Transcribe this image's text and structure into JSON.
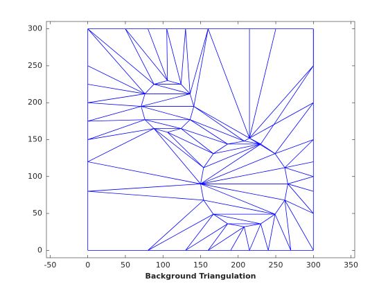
{
  "chart_data": {
    "type": "triangulation",
    "title": "Background Triangulation",
    "color": "#0000ff",
    "xlim": [
      -55,
      355
    ],
    "ylim": [
      -10,
      310
    ],
    "xticks": [
      -50,
      0,
      50,
      100,
      150,
      200,
      250,
      300,
      350
    ],
    "yticks": [
      0,
      50,
      100,
      150,
      200,
      250,
      300
    ],
    "vertices": [
      [
        0,
        0
      ],
      [
        300,
        0
      ],
      [
        300,
        300
      ],
      [
        0,
        300
      ],
      [
        141,
        195
      ],
      [
        136,
        212
      ],
      [
        124,
        225
      ],
      [
        106,
        230
      ],
      [
        88,
        225
      ],
      [
        76,
        212
      ],
      [
        71,
        195
      ],
      [
        76,
        177
      ],
      [
        88,
        165
      ],
      [
        106,
        160
      ],
      [
        124,
        165
      ],
      [
        136,
        177
      ],
      [
        266,
        90
      ],
      [
        262,
        112
      ],
      [
        249,
        131
      ],
      [
        230,
        144
      ],
      [
        208,
        148
      ],
      [
        186,
        144
      ],
      [
        167,
        131
      ],
      [
        154,
        112
      ],
      [
        150,
        90
      ],
      [
        154,
        68
      ],
      [
        167,
        49
      ],
      [
        186,
        36
      ],
      [
        208,
        32
      ],
      [
        230,
        36
      ],
      [
        249,
        49
      ],
      [
        262,
        68
      ],
      [
        0,
        80
      ],
      [
        0,
        120
      ],
      [
        0,
        150
      ],
      [
        0,
        175
      ],
      [
        0,
        200
      ],
      [
        0,
        225
      ],
      [
        0,
        250
      ],
      [
        50,
        300
      ],
      [
        80,
        300
      ],
      [
        105,
        300
      ],
      [
        130,
        300
      ],
      [
        160,
        300
      ],
      [
        215,
        300
      ],
      [
        250,
        300
      ],
      [
        300,
        250
      ],
      [
        300,
        200
      ],
      [
        300,
        150
      ],
      [
        300,
        120
      ],
      [
        300,
        100
      ],
      [
        300,
        80
      ],
      [
        300,
        50
      ],
      [
        80,
        0
      ],
      [
        130,
        0
      ],
      [
        160,
        0
      ],
      [
        190,
        0
      ],
      [
        215,
        0
      ],
      [
        240,
        0
      ],
      [
        270,
        0
      ],
      [
        215,
        152
      ]
    ],
    "edges": [
      [
        0,
        53
      ],
      [
        53,
        54
      ],
      [
        54,
        55
      ],
      [
        55,
        56
      ],
      [
        56,
        57
      ],
      [
        57,
        58
      ],
      [
        58,
        59
      ],
      [
        59,
        1
      ],
      [
        1,
        52
      ],
      [
        52,
        51
      ],
      [
        51,
        50
      ],
      [
        50,
        49
      ],
      [
        49,
        48
      ],
      [
        48,
        47
      ],
      [
        47,
        46
      ],
      [
        46,
        2
      ],
      [
        2,
        45
      ],
      [
        45,
        44
      ],
      [
        44,
        43
      ],
      [
        43,
        42
      ],
      [
        42,
        41
      ],
      [
        41,
        40
      ],
      [
        40,
        39
      ],
      [
        39,
        3
      ],
      [
        3,
        38
      ],
      [
        38,
        37
      ],
      [
        37,
        36
      ],
      [
        36,
        35
      ],
      [
        35,
        34
      ],
      [
        34,
        33
      ],
      [
        33,
        32
      ],
      [
        32,
        0
      ],
      [
        4,
        5
      ],
      [
        5,
        6
      ],
      [
        6,
        7
      ],
      [
        7,
        8
      ],
      [
        8,
        9
      ],
      [
        9,
        10
      ],
      [
        10,
        11
      ],
      [
        11,
        12
      ],
      [
        12,
        13
      ],
      [
        13,
        14
      ],
      [
        14,
        15
      ],
      [
        15,
        4
      ],
      [
        16,
        17
      ],
      [
        17,
        18
      ],
      [
        18,
        19
      ],
      [
        19,
        20
      ],
      [
        20,
        21
      ],
      [
        21,
        22
      ],
      [
        22,
        23
      ],
      [
        23,
        24
      ],
      [
        24,
        25
      ],
      [
        25,
        26
      ],
      [
        26,
        27
      ],
      [
        27,
        28
      ],
      [
        28,
        29
      ],
      [
        29,
        30
      ],
      [
        30,
        31
      ],
      [
        31,
        16
      ],
      [
        10,
        4
      ],
      [
        10,
        5
      ],
      [
        10,
        15
      ],
      [
        9,
        5
      ],
      [
        8,
        5
      ],
      [
        8,
        6
      ],
      [
        11,
        15
      ],
      [
        11,
        14
      ],
      [
        12,
        14
      ],
      [
        24,
        16
      ],
      [
        24,
        17
      ],
      [
        24,
        18
      ],
      [
        24,
        31
      ],
      [
        24,
        30
      ],
      [
        25,
        30
      ],
      [
        26,
        30
      ],
      [
        26,
        29
      ],
      [
        27,
        29
      ],
      [
        24,
        19
      ],
      [
        23,
        19
      ],
      [
        22,
        19
      ],
      [
        21,
        19
      ],
      [
        3,
        8
      ],
      [
        3,
        9
      ],
      [
        38,
        9
      ],
      [
        37,
        9
      ],
      [
        36,
        9
      ],
      [
        36,
        10
      ],
      [
        35,
        10
      ],
      [
        35,
        11
      ],
      [
        34,
        11
      ],
      [
        34,
        12
      ],
      [
        33,
        12
      ],
      [
        39,
        8
      ],
      [
        39,
        7
      ],
      [
        40,
        7
      ],
      [
        41,
        7
      ],
      [
        41,
        6
      ],
      [
        42,
        6
      ],
      [
        42,
        5
      ],
      [
        43,
        5
      ],
      [
        43,
        4
      ],
      [
        13,
        22
      ],
      [
        14,
        22
      ],
      [
        14,
        21
      ],
      [
        15,
        21
      ],
      [
        15,
        20
      ],
      [
        4,
        20
      ],
      [
        4,
        60
      ],
      [
        43,
        60
      ],
      [
        44,
        60
      ],
      [
        60,
        20
      ],
      [
        60,
        19
      ],
      [
        45,
        60
      ],
      [
        46,
        60
      ],
      [
        47,
        60
      ],
      [
        60,
        18
      ],
      [
        46,
        19
      ],
      [
        47,
        18
      ],
      [
        12,
        23
      ],
      [
        12,
        24
      ],
      [
        13,
        23
      ],
      [
        33,
        24
      ],
      [
        32,
        24
      ],
      [
        32,
        25
      ],
      [
        53,
        25
      ],
      [
        53,
        26
      ],
      [
        54,
        26
      ],
      [
        54,
        27
      ],
      [
        55,
        27
      ],
      [
        55,
        28
      ],
      [
        56,
        28
      ],
      [
        57,
        28
      ],
      [
        57,
        29
      ],
      [
        58,
        29
      ],
      [
        58,
        30
      ],
      [
        59,
        30
      ],
      [
        59,
        31
      ],
      [
        1,
        31
      ],
      [
        52,
        31
      ],
      [
        52,
        16
      ],
      [
        51,
        16
      ],
      [
        50,
        16
      ],
      [
        50,
        17
      ],
      [
        49,
        17
      ],
      [
        48,
        17
      ],
      [
        48,
        18
      ],
      [
        2,
        46
      ]
    ]
  }
}
